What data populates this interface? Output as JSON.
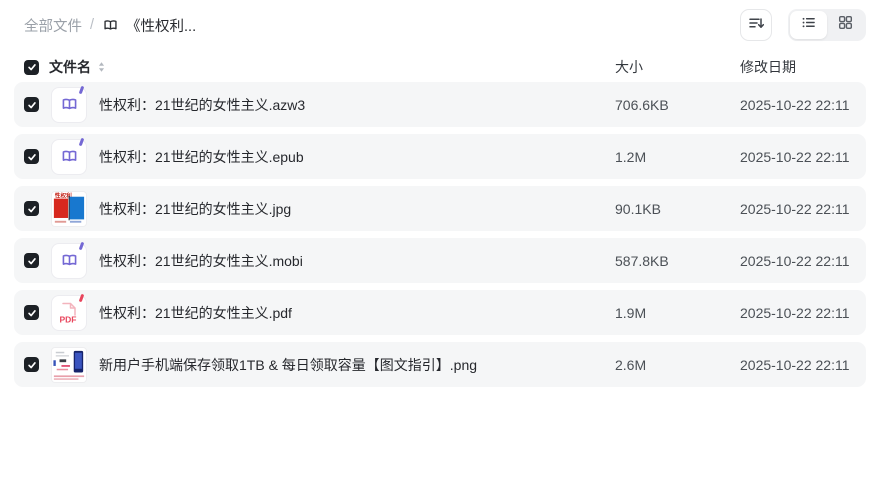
{
  "breadcrumb": {
    "root": "全部文件",
    "separator": "/",
    "current": "《性权利..."
  },
  "toolbar": {
    "sort_button": "sort",
    "view_toggle": {
      "active": "list",
      "options": [
        "list",
        "grid"
      ]
    }
  },
  "table": {
    "select_all_checked": true,
    "headers": {
      "name": "文件名",
      "size": "大小",
      "modified": "修改日期"
    },
    "rows": [
      {
        "name": "性权利：21世纪的女性主义.azw3",
        "size": "706.6KB",
        "modified": "2025-10-22 22:11",
        "icon": "ebook",
        "checked": true
      },
      {
        "name": "性权利：21世纪的女性主义.epub",
        "size": "1.2M",
        "modified": "2025-10-22 22:11",
        "icon": "ebook",
        "checked": true
      },
      {
        "name": "性权利：21世纪的女性主义.jpg",
        "size": "90.1KB",
        "modified": "2025-10-22 22:11",
        "icon": "cover-thumbnail",
        "checked": true
      },
      {
        "name": "性权利：21世纪的女性主义.mobi",
        "size": "587.8KB",
        "modified": "2025-10-22 22:11",
        "icon": "ebook",
        "checked": true
      },
      {
        "name": "性权利：21世纪的女性主义.pdf",
        "size": "1.9M",
        "modified": "2025-10-22 22:11",
        "icon": "pdf",
        "checked": true
      },
      {
        "name": "新用户手机端保存领取1TB & 每日领取容量【图文指引】.png",
        "size": "2.6M",
        "modified": "2025-10-22 22:11",
        "icon": "guide-thumbnail",
        "checked": true
      }
    ]
  },
  "colors": {
    "accent_purple": "#7468d4",
    "pdf_red": "#e8455c",
    "row_background": "#f5f6f7",
    "checkbox": "#1d2126",
    "cover_red": "#d7281e",
    "cover_blue": "#1878cf"
  }
}
